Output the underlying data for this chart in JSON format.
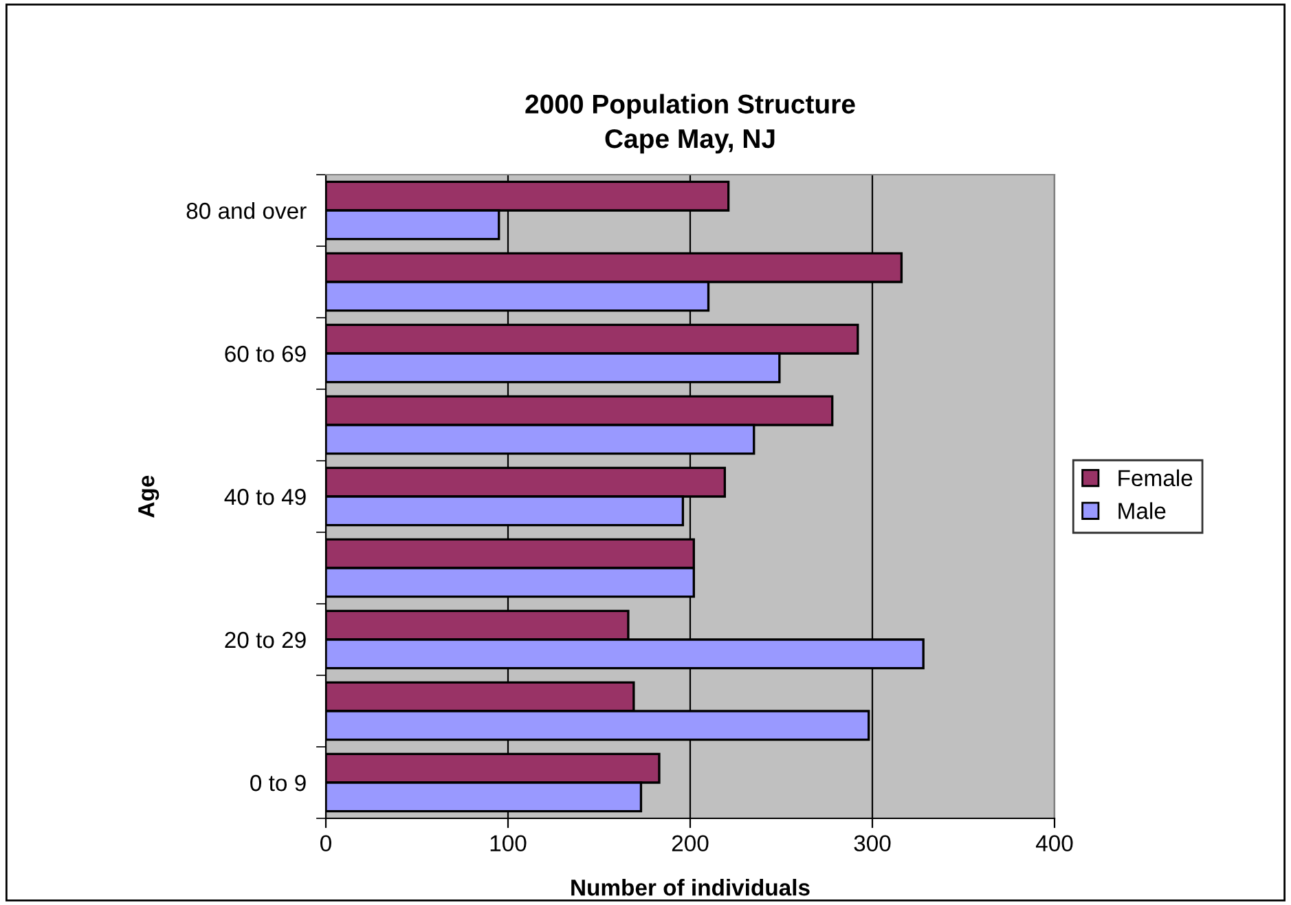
{
  "chart_data": {
    "type": "bar",
    "orientation": "horizontal",
    "title": "2000 Population Structure\nCape May, NJ",
    "xlabel": "Number of individuals",
    "ylabel": "Age",
    "categories": [
      "80 and over",
      null,
      "60 to 69",
      null,
      "40 to 49",
      null,
      "20 to 29",
      null,
      "0 to 9"
    ],
    "series": [
      {
        "name": "Female",
        "color": "#993366",
        "values": [
          221,
          316,
          292,
          278,
          219,
          202,
          166,
          169,
          183
        ]
      },
      {
        "name": "Male",
        "color": "#9999ff",
        "values": [
          95,
          210,
          249,
          235,
          196,
          202,
          328,
          298,
          173
        ]
      }
    ],
    "xlim": [
      0,
      400
    ],
    "xticks": [
      0,
      100,
      200,
      300,
      400
    ],
    "grid": "x",
    "legend": "right"
  }
}
